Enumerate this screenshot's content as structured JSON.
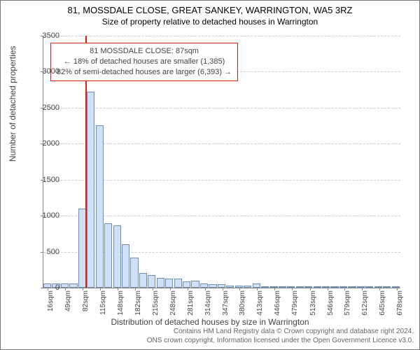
{
  "title": "81, MOSSDALE CLOSE, GREAT SANKEY, WARRINGTON, WA5 3RZ",
  "subtitle": "Size of property relative to detached houses in Warrington",
  "ylabel": "Number of detached properties",
  "xlabel": "Distribution of detached houses by size in Warrington",
  "chart": {
    "type": "histogram",
    "ylim": [
      0,
      3500
    ],
    "ytick_step": 500,
    "background_color": "#ffffff",
    "grid_color": "#cccccc",
    "bar_fill": "#cfe0f7",
    "bar_stroke": "#6b8fb5",
    "bar_width": 0.9,
    "marker_color": "#d21",
    "marker_x": 87,
    "x_min": 8,
    "x_bin": 16.5,
    "x_ticks": [
      16,
      49,
      82,
      115,
      148,
      182,
      215,
      248,
      281,
      314,
      347,
      380,
      413,
      446,
      479,
      513,
      546,
      579,
      612,
      645,
      678
    ],
    "values": [
      60,
      60,
      60,
      60,
      1100,
      2720,
      2260,
      890,
      870,
      600,
      420,
      200,
      180,
      140,
      130,
      130,
      90,
      100,
      60,
      50,
      50,
      30,
      30,
      30,
      60,
      15,
      0,
      20,
      0,
      5,
      5,
      0,
      0,
      5,
      0,
      0,
      0,
      0,
      0,
      0,
      0
    ]
  },
  "info_box": {
    "line1": "81 MOSSDALE CLOSE: 87sqm",
    "line2": "← 18% of detached houses are smaller (1,385)",
    "line3": "82% of semi-detached houses are larger (6,393) →"
  },
  "footer": {
    "line1": "Contains HM Land Registry data © Crown copyright and database right 2024.",
    "line2": "ONS crown copyright. Information licensed under the Open Government Licence v3.0."
  }
}
